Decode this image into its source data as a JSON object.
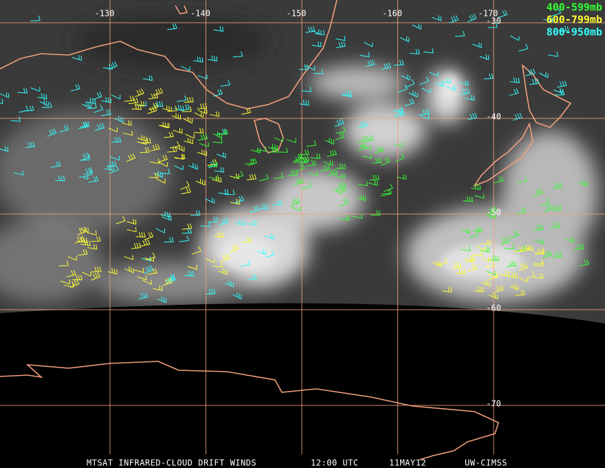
{
  "longitude_ticks": [
    -130,
    -140,
    -150,
    -160,
    -170
  ],
  "latitude_ticks": [
    -30,
    -40,
    -50,
    -60,
    -70
  ],
  "legend": [
    {
      "label": "400-599mb",
      "color": "#33ff33"
    },
    {
      "label": "600-799mb",
      "color": "#ffff33"
    },
    {
      "label": "800-950mb",
      "color": "#33ffff"
    }
  ],
  "footer": {
    "product": "MTSAT INFRARED-CLOUD DRIFT WINDS",
    "time": "12:00 UTC",
    "date": "11MAY12",
    "source": "UW-CIMSS"
  }
}
